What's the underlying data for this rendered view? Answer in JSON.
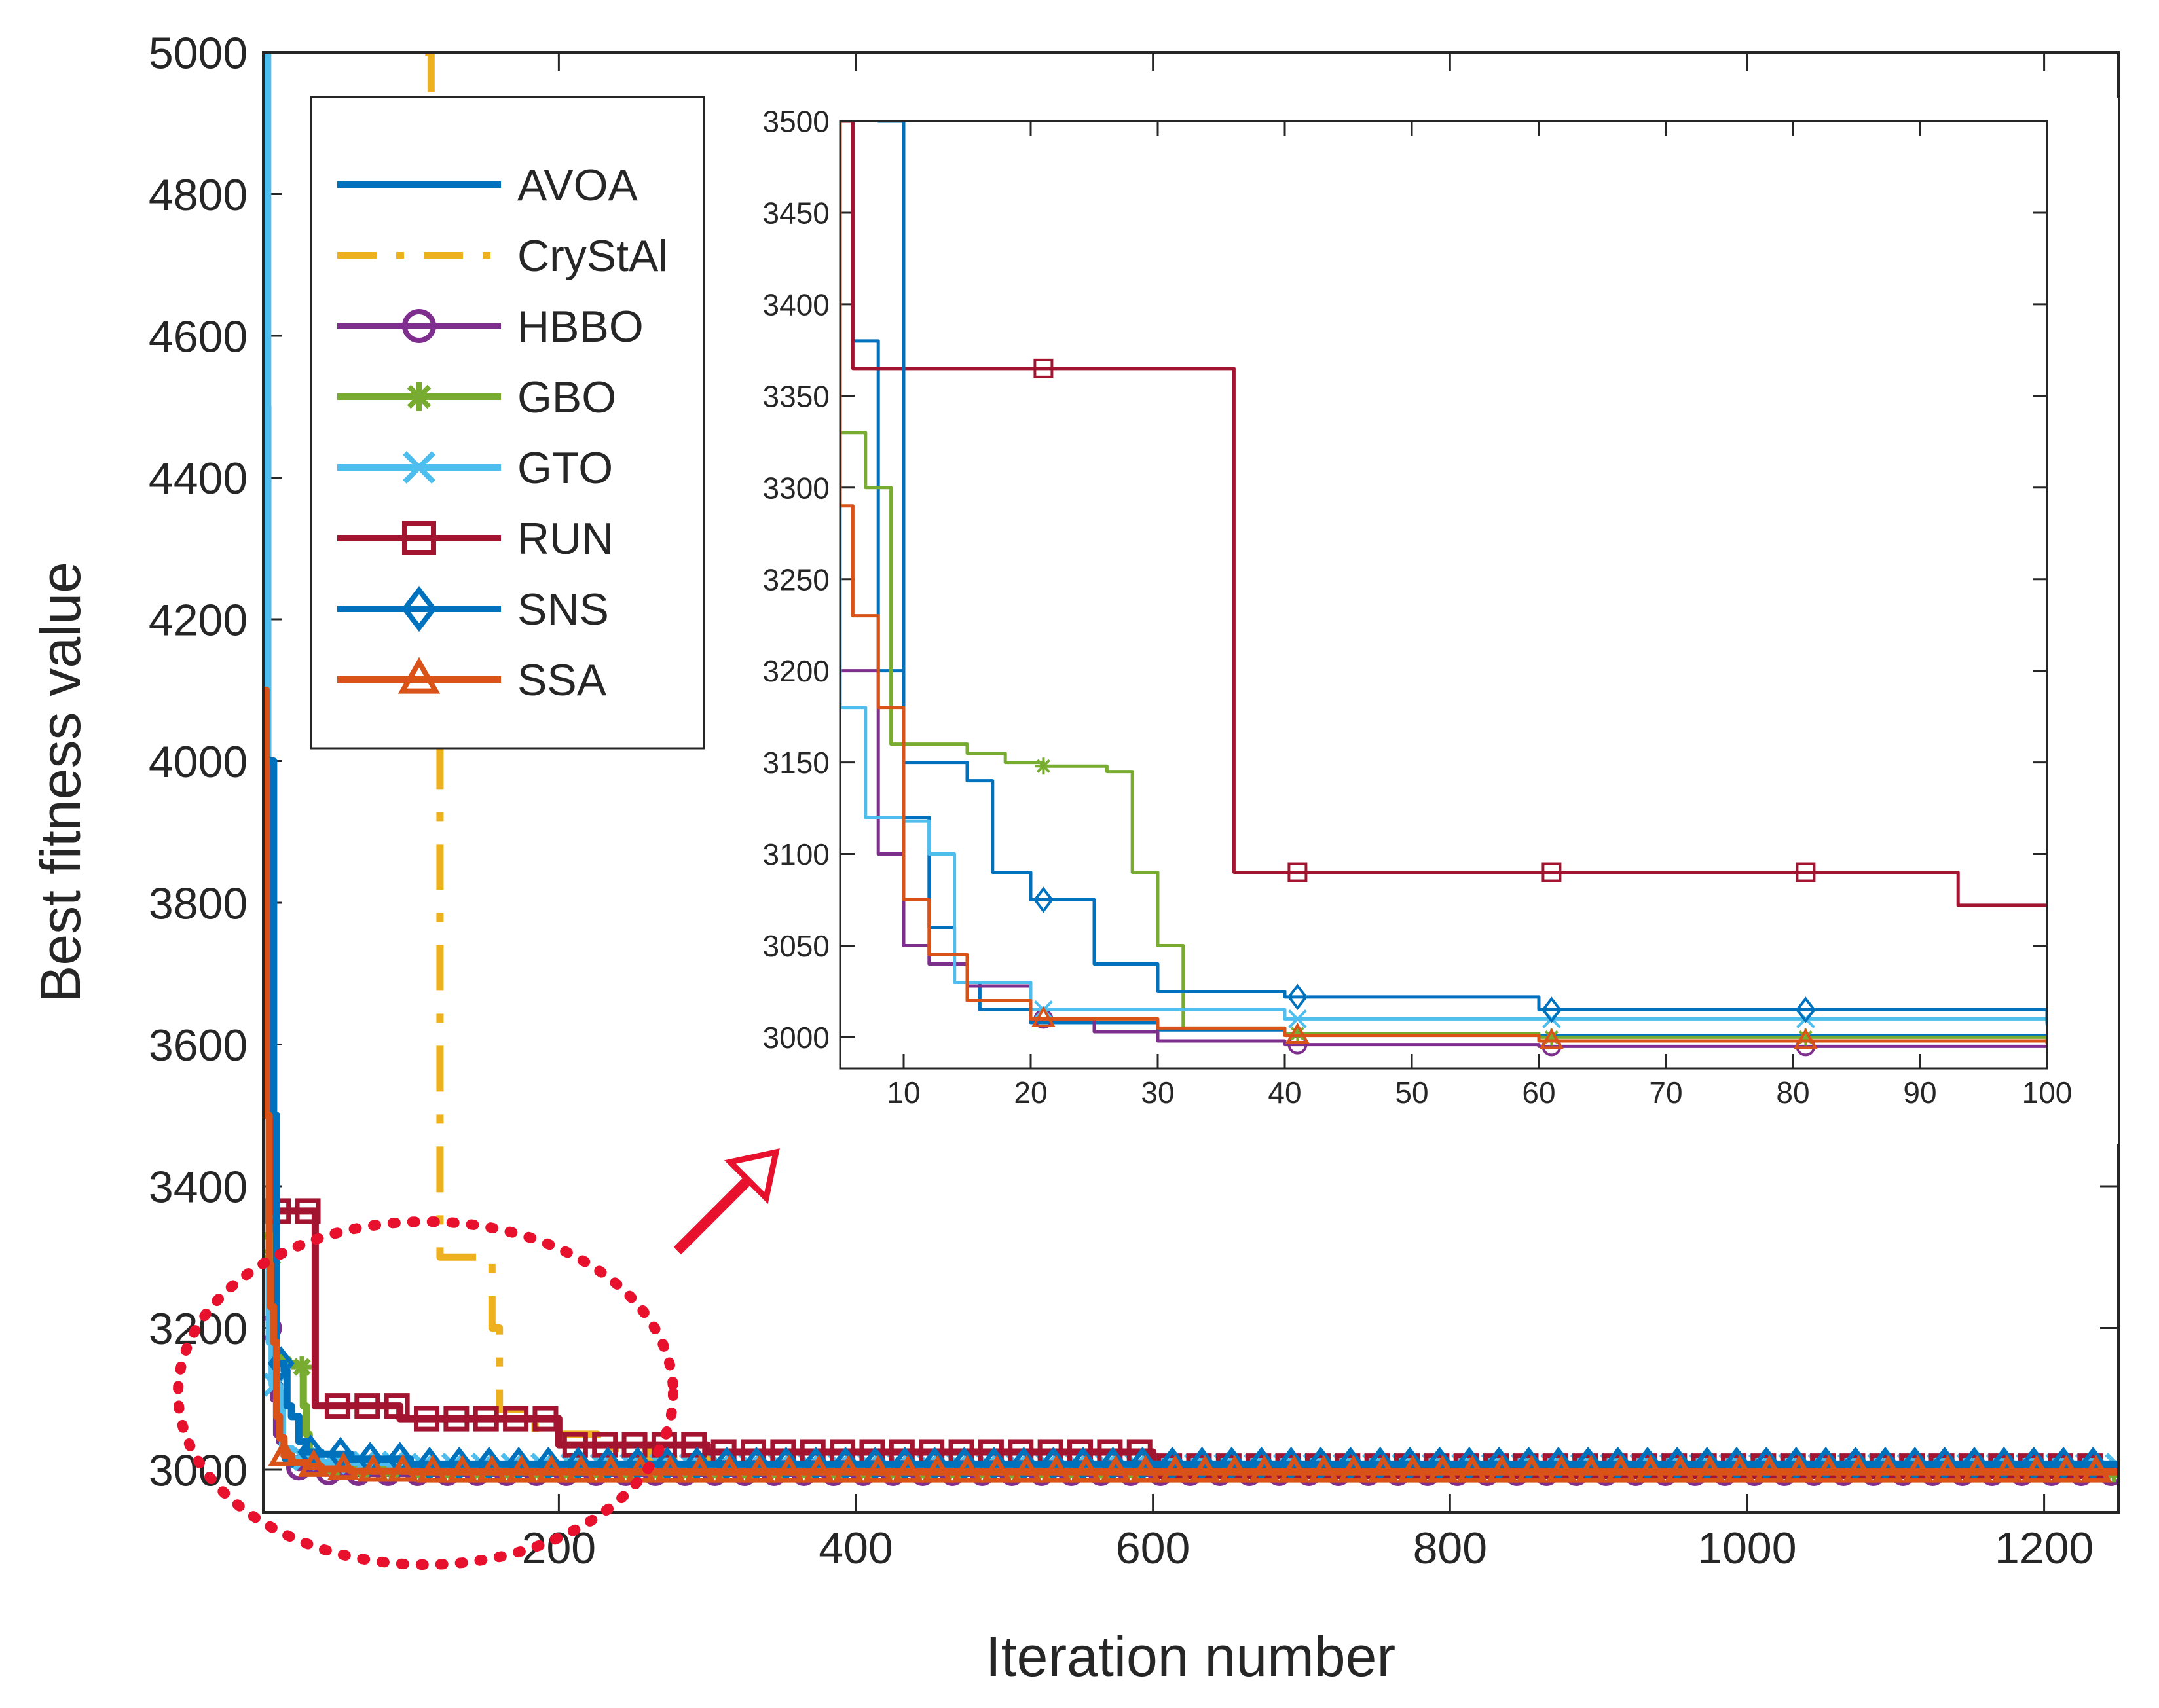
{
  "chart_data": [
    {
      "id": "main",
      "type": "line",
      "title": "",
      "xlabel": "Iteration number",
      "ylabel": "Best fitness value",
      "xlim": [
        1,
        1250
      ],
      "ylim": [
        2940,
        5000
      ],
      "xticks": [
        200,
        400,
        600,
        800,
        1000,
        1200
      ],
      "yticks": [
        3000,
        3200,
        3400,
        3600,
        3800,
        4000,
        4200,
        4400,
        4600,
        4800,
        5000
      ],
      "grid": false,
      "legend_position": "top-left",
      "series": [
        {
          "name": "AVOA",
          "color": "#0072BD",
          "style": "solid",
          "marker": "none",
          "markers_every": 0,
          "x": [
            1,
            2,
            3,
            4,
            5,
            6,
            8,
            10,
            12,
            14,
            16,
            20,
            30,
            40,
            60,
            100,
            1250
          ],
          "y": [
            5000,
            5000,
            4500,
            3950,
            3660,
            3380,
            3200,
            3120,
            3060,
            3030,
            3015,
            3008,
            3004,
            3002,
            3001,
            2999,
            2998
          ]
        },
        {
          "name": "CryStAl",
          "color": "#EDB120",
          "style": "dashdot",
          "marker": "none",
          "markers_every": 0,
          "x": [
            110,
            114,
            118,
            120,
            150,
            155,
            160,
            180,
            184,
            220,
            226,
            260,
            300,
            1250
          ],
          "y": [
            5000,
            4700,
            4100,
            3300,
            3300,
            3200,
            3085,
            3085,
            3050,
            3050,
            3030,
            3015,
            3005,
            3000
          ]
        },
        {
          "name": "HBBO",
          "color": "#7E2F8E",
          "style": "solid",
          "marker": "circle",
          "markers_every": 20,
          "x": [
            1,
            5,
            8,
            10,
            12,
            15,
            20,
            25,
            30,
            40,
            60,
            100,
            1250
          ],
          "y": [
            3330,
            3200,
            3100,
            3050,
            3040,
            3028,
            3010,
            3003,
            2998,
            2996,
            2995,
            2995,
            2995
          ]
        },
        {
          "name": "GBO",
          "color": "#77AC30",
          "style": "solid",
          "marker": "asterisk",
          "markers_every": 20,
          "x": [
            1,
            5,
            7,
            9,
            12,
            15,
            18,
            21,
            26,
            28,
            30,
            32,
            40,
            60,
            100,
            1250
          ],
          "y": [
            3330,
            3330,
            3300,
            3160,
            3160,
            3155,
            3150,
            3148,
            3145,
            3090,
            3050,
            3005,
            3002,
            3000,
            2997,
            2997
          ]
        },
        {
          "name": "GTO",
          "color": "#4DBEEE",
          "style": "solid",
          "marker": "x",
          "markers_every": 20,
          "x": [
            1,
            4,
            5,
            7,
            10,
            12,
            14,
            20,
            40,
            60,
            100,
            1250
          ],
          "y": [
            5000,
            3500,
            3180,
            3120,
            3118,
            3100,
            3030,
            3015,
            3010,
            3010,
            3007,
            3007
          ]
        },
        {
          "name": "RUN",
          "color": "#A2142F",
          "style": "solid",
          "marker": "square",
          "markers_every": 20,
          "x": [
            1,
            4,
            5,
            6,
            35,
            36,
            60,
            92,
            93,
            100,
            200,
            300,
            600,
            1250
          ],
          "y": [
            4000,
            3500,
            3500,
            3365,
            3365,
            3090,
            3090,
            3090,
            3072,
            3072,
            3035,
            3025,
            3005,
            3000
          ]
        },
        {
          "name": "SNS",
          "color": "#0072BD",
          "style": "solid",
          "marker": "diamond",
          "markers_every": 20,
          "x": [
            1,
            8,
            10,
            12,
            15,
            17,
            20,
            25,
            30,
            40,
            60,
            100,
            1250
          ],
          "y": [
            4000,
            3500,
            3150,
            3150,
            3140,
            3090,
            3075,
            3040,
            3025,
            3022,
            3015,
            3008,
            2995
          ]
        },
        {
          "name": "SSA",
          "color": "#D95319",
          "style": "solid",
          "marker": "triangle",
          "markers_every": 20,
          "x": [
            1,
            3,
            5,
            6,
            8,
            10,
            12,
            15,
            20,
            30,
            40,
            60,
            100,
            1250
          ],
          "y": [
            4100,
            3500,
            3290,
            3230,
            3180,
            3075,
            3045,
            3020,
            3010,
            3005,
            3001,
            2998,
            2997,
            2997
          ]
        }
      ]
    },
    {
      "id": "inset",
      "type": "line",
      "title": "",
      "xlabel": "",
      "ylabel": "",
      "xlim": [
        5,
        100
      ],
      "ylim": [
        2983,
        3500
      ],
      "xticks": [
        10,
        20,
        30,
        40,
        50,
        60,
        70,
        80,
        90,
        100
      ],
      "yticks": [
        3000,
        3050,
        3100,
        3150,
        3200,
        3250,
        3300,
        3350,
        3400,
        3450,
        3500
      ],
      "grid": false,
      "marker_positions": [
        21,
        41,
        61,
        81
      ],
      "series_from_main": true
    }
  ],
  "annotations": {
    "callout_arrow": "arrow",
    "zoom_region": "dotted-ellipse"
  },
  "legend": {
    "items": [
      "AVOA",
      "CryStAl",
      "HBBO",
      "GBO",
      "GTO",
      "RUN",
      "SNS",
      "SSA"
    ]
  }
}
